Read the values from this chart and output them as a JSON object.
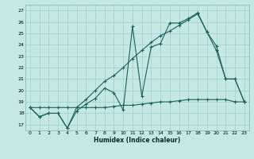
{
  "xlabel": "Humidex (Indice chaleur)",
  "background_color": "#c5e8e4",
  "grid_color": "#9ecece",
  "line_color": "#1a6060",
  "xlim": [
    -0.5,
    23.5
  ],
  "ylim": [
    16.5,
    27.5
  ],
  "xticks": [
    0,
    1,
    2,
    3,
    4,
    5,
    6,
    7,
    8,
    9,
    10,
    11,
    12,
    13,
    14,
    15,
    16,
    17,
    18,
    19,
    20,
    21,
    22,
    23
  ],
  "yticks": [
    17,
    18,
    19,
    20,
    21,
    22,
    23,
    24,
    25,
    26,
    27
  ],
  "line_jagged_x": [
    0,
    1,
    2,
    3,
    4,
    5,
    6,
    7,
    8,
    9,
    10,
    11,
    12,
    13,
    14,
    15,
    16,
    17,
    18,
    19,
    20,
    21,
    22,
    23
  ],
  "line_jagged_y": [
    18.5,
    17.7,
    18.0,
    18.0,
    16.7,
    18.2,
    18.8,
    19.3,
    20.2,
    19.8,
    18.3,
    25.6,
    19.5,
    23.8,
    24.1,
    25.9,
    25.9,
    26.3,
    26.8,
    25.1,
    23.9,
    21.0,
    21.0,
    19.0
  ],
  "line_upper_x": [
    0,
    1,
    2,
    3,
    4,
    5,
    6,
    7,
    8,
    9,
    10,
    11,
    12,
    13,
    14,
    15,
    16,
    17,
    18,
    19,
    20,
    21,
    22,
    23
  ],
  "line_upper_y": [
    18.5,
    17.7,
    18.0,
    18.0,
    16.7,
    18.5,
    19.2,
    20.0,
    20.8,
    21.3,
    22.0,
    22.8,
    23.5,
    24.2,
    24.8,
    25.2,
    25.7,
    26.2,
    26.7,
    25.1,
    23.5,
    21.0,
    21.0,
    19.0
  ],
  "line_flat_x": [
    0,
    1,
    2,
    3,
    4,
    5,
    6,
    7,
    8,
    9,
    10,
    11,
    12,
    13,
    14,
    15,
    16,
    17,
    18,
    19,
    20,
    21,
    22,
    23
  ],
  "line_flat_y": [
    18.5,
    18.5,
    18.5,
    18.5,
    18.5,
    18.5,
    18.5,
    18.5,
    18.5,
    18.6,
    18.7,
    18.7,
    18.8,
    18.9,
    19.0,
    19.0,
    19.1,
    19.2,
    19.2,
    19.2,
    19.2,
    19.2,
    19.0,
    19.0
  ]
}
